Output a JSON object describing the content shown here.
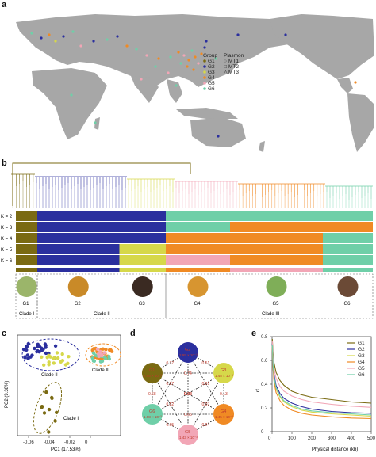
{
  "panels": {
    "a": "a",
    "b": "b",
    "c": "c",
    "d": "d",
    "e": "e"
  },
  "colors": {
    "G1": "#7a6a12",
    "G2": "#2b2f9e",
    "G3": "#d6d84a",
    "G4": "#f08a24",
    "G5": "#f2a6b6",
    "G6": "#6fcfa8",
    "map_land": "#a7a7a7",
    "map_sea": "#ffffff"
  },
  "map_legend": {
    "group_title": "Group",
    "plasmon_title": "Plasmon",
    "groups": [
      "G1",
      "G2",
      "G3",
      "G4",
      "G5",
      "G6"
    ],
    "plasmons": [
      "MT1",
      "MT2",
      "MT3"
    ]
  },
  "admixture": {
    "k_labels": [
      "K = 2",
      "K = 3",
      "K = 4",
      "K = 5",
      "K = 6"
    ]
  },
  "groups_row": {
    "labels": [
      "G1",
      "G2",
      "G3",
      "G4",
      "G5",
      "G6"
    ],
    "clades": [
      "Clade I",
      "Clade II",
      "Clade III"
    ]
  },
  "pca": {
    "xlabel": "PC1 (17.53%)",
    "ylabel": "PC2 (9.38%)",
    "x_ticks": [
      "-0.06",
      "-0.04",
      "-0.02",
      "0"
    ],
    "clade_labels": [
      "Clade II",
      "Clade III",
      "Clade I"
    ]
  },
  "network": {
    "nodes": [
      {
        "group": "G2",
        "value": "2.95 × 10⁻³"
      },
      {
        "group": "G3",
        "value": "1.45 × 10⁻³"
      },
      {
        "group": "G4",
        "value": "1.45 × 10⁻³"
      },
      {
        "group": "G5",
        "value": "1.43 × 10⁻³"
      },
      {
        "group": "G6",
        "value": "1.98 × 10⁻³"
      },
      {
        "group": "G1",
        "value": "2.95 × 10⁻³"
      }
    ],
    "edge_labels": [
      "0.51",
      "0.01",
      "0.65",
      "0.27",
      "0.37",
      "0.13",
      "0.07",
      "0.79",
      "0.74",
      "0.24",
      "0.65",
      "0.22",
      "0.05",
      "0.52",
      "0.68"
    ]
  },
  "chart_data": {
    "type": "line",
    "title": "",
    "xlabel": "Physical distance (kb)",
    "ylabel": "r²",
    "x_ticks": [
      "0",
      "100",
      "200",
      "300",
      "400",
      "500"
    ],
    "y_ticks": [
      "0",
      "0.2",
      "0.4",
      "0.6",
      "0.8"
    ],
    "xlim": [
      0,
      500
    ],
    "ylim": [
      0,
      0.8
    ],
    "legend_position": "top-right",
    "x": [
      1,
      5,
      10,
      20,
      40,
      60,
      100,
      150,
      200,
      300,
      400,
      500
    ],
    "series": [
      {
        "name": "G1",
        "values": [
          0.78,
          0.66,
          0.58,
          0.5,
          0.43,
          0.39,
          0.34,
          0.31,
          0.29,
          0.27,
          0.25,
          0.24
        ]
      },
      {
        "name": "G2",
        "values": [
          0.74,
          0.58,
          0.48,
          0.39,
          0.32,
          0.28,
          0.24,
          0.21,
          0.19,
          0.17,
          0.16,
          0.155
        ]
      },
      {
        "name": "G3",
        "values": [
          0.72,
          0.55,
          0.45,
          0.36,
          0.29,
          0.25,
          0.21,
          0.18,
          0.165,
          0.15,
          0.14,
          0.13
        ]
      },
      {
        "name": "G4",
        "values": [
          0.7,
          0.52,
          0.42,
          0.33,
          0.26,
          0.22,
          0.18,
          0.155,
          0.14,
          0.125,
          0.115,
          0.11
        ]
      },
      {
        "name": "G5",
        "values": [
          0.76,
          0.62,
          0.53,
          0.45,
          0.38,
          0.34,
          0.3,
          0.27,
          0.25,
          0.23,
          0.215,
          0.205
        ]
      },
      {
        "name": "G6",
        "values": [
          0.73,
          0.56,
          0.46,
          0.37,
          0.3,
          0.26,
          0.22,
          0.19,
          0.175,
          0.16,
          0.15,
          0.14
        ]
      }
    ]
  }
}
